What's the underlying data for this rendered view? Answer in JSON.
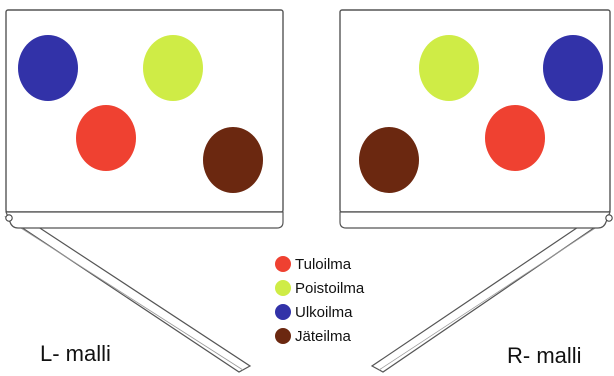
{
  "models": {
    "left_label": "L- malli",
    "right_label": "R- malli"
  },
  "legend": [
    {
      "key": "supply",
      "label": "Tuloilma",
      "color": "#ef4131"
    },
    {
      "key": "extract",
      "label": "Poistoilma",
      "color": "#cfec46"
    },
    {
      "key": "outdoor",
      "label": "Ulkoilma",
      "color": "#3232a8"
    },
    {
      "key": "exhaust",
      "label": "Jäteilma",
      "color": "#6b2810"
    }
  ],
  "colors": {
    "outline": "#555555",
    "background": "#ffffff"
  }
}
